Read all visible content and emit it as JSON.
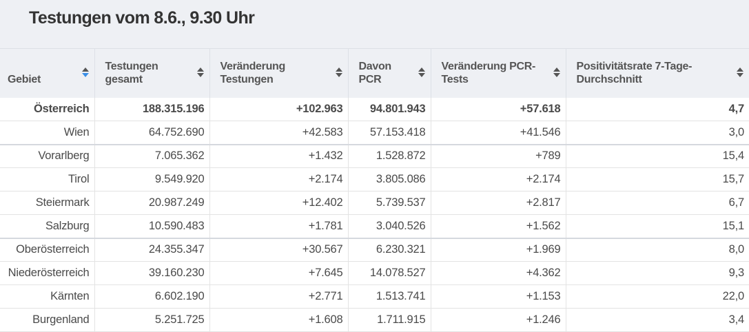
{
  "title": "Testungen vom 8.6., 9.30 Uhr",
  "columns": [
    "Gebiet",
    "Testungen gesamt",
    "Veränderung Testungen",
    "Davon PCR",
    "Veränderung PCR-Tests",
    "Positivitätsrate 7-Tage-Durchschnitt"
  ],
  "sort_active_color": "#3a8ee6",
  "rows": [
    [
      "Österreich",
      "188.315.196",
      "+102.963",
      "94.801.943",
      "+57.618",
      "4,7"
    ],
    [
      "Wien",
      "64.752.690",
      "+42.583",
      "57.153.418",
      "+41.546",
      "3,0"
    ],
    [
      "Vorarlberg",
      "7.065.362",
      "+1.432",
      "1.528.872",
      "+789",
      "15,4"
    ],
    [
      "Tirol",
      "9.549.920",
      "+2.174",
      "3.805.086",
      "+2.174",
      "15,7"
    ],
    [
      "Steiermark",
      "20.987.249",
      "+12.402",
      "5.739.537",
      "+2.817",
      "6,7"
    ],
    [
      "Salzburg",
      "10.590.483",
      "+1.781",
      "3.040.526",
      "+1.562",
      "15,1"
    ],
    [
      "Oberösterreich",
      "24.355.347",
      "+30.567",
      "6.230.321",
      "+1.969",
      "8,0"
    ],
    [
      "Niederösterreich",
      "39.160.230",
      "+7.645",
      "14.078.527",
      "+4.362",
      "9,3"
    ],
    [
      "Kärnten",
      "6.602.190",
      "+2.771",
      "1.513.741",
      "+1.153",
      "22,0"
    ],
    [
      "Burgenland",
      "5.251.725",
      "+1.608",
      "1.711.915",
      "+1.246",
      "3,4"
    ]
  ]
}
